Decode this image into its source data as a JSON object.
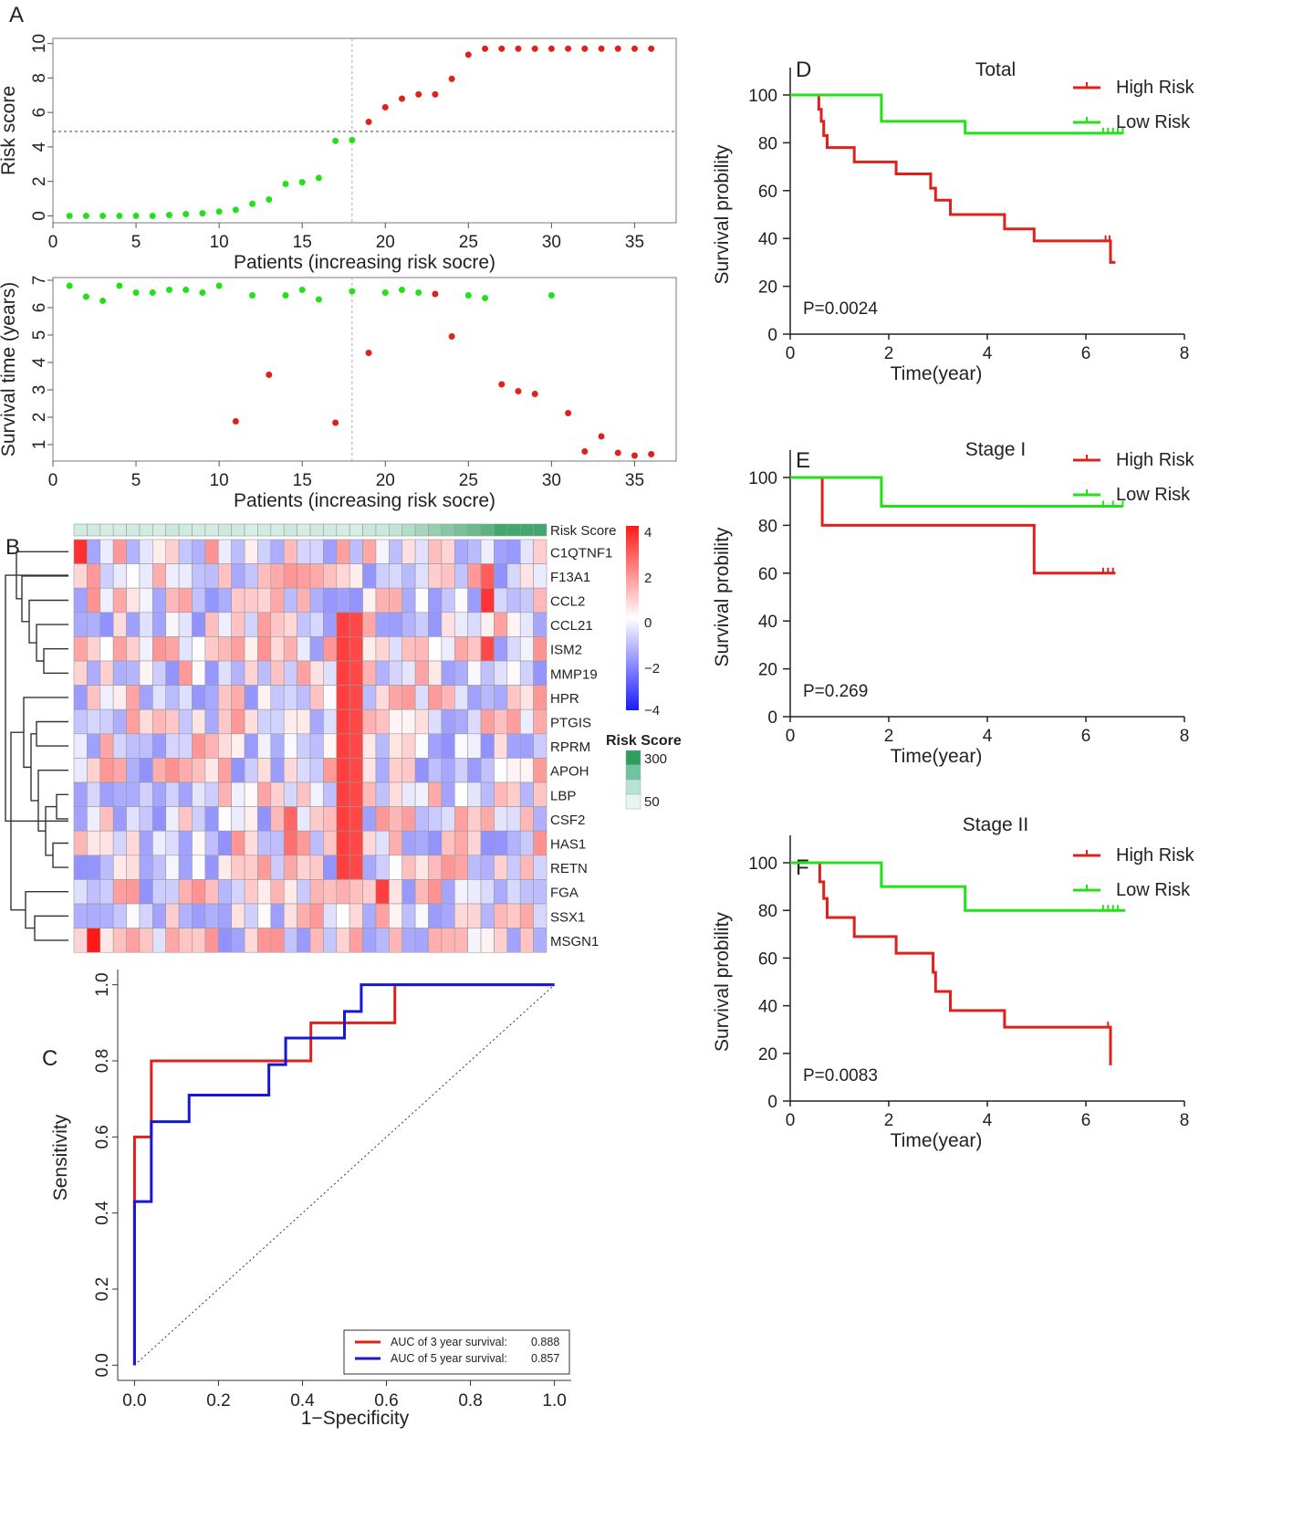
{
  "panel_labels": {
    "A": "A",
    "B": "B",
    "C": "C",
    "D": "D",
    "E": "E",
    "F": "F"
  },
  "colors": {
    "high": "#e0201b",
    "low": "#24e01a",
    "blue": "#1717d6",
    "heat_high": "#ff1a1a",
    "heat_mid": "#ffffff",
    "heat_low": "#1a1aff",
    "risk_dark": "#2e9e5e",
    "risk_light": "#e6f5f1"
  },
  "chart_data": [
    {
      "id": "A1",
      "type": "scatter",
      "ylabel": "Risk score",
      "xlabel": "Patients (increasing risk socre)",
      "xlim": [
        0,
        37.5
      ],
      "ylim": [
        -0.4,
        10.3
      ],
      "xticks": [
        "0",
        "5",
        "10",
        "15",
        "20",
        "25",
        "30",
        "35"
      ],
      "yticks": [
        "0",
        "2",
        "4",
        "6",
        "8",
        "10"
      ],
      "cutoff_x": 18,
      "cutoff_y": 4.9,
      "x": [
        1,
        2,
        3,
        4,
        5,
        6,
        7,
        8,
        9,
        10,
        11,
        12,
        13,
        14,
        15,
        16,
        17,
        18,
        19,
        20,
        21,
        22,
        23,
        24,
        25,
        26,
        27,
        28,
        29,
        30,
        31,
        32,
        33,
        34,
        35,
        36
      ],
      "y": [
        0,
        0,
        0,
        0,
        0,
        0,
        0.05,
        0.1,
        0.15,
        0.25,
        0.35,
        0.7,
        0.95,
        1.85,
        1.95,
        2.2,
        4.35,
        4.4,
        5.45,
        6.3,
        6.8,
        7.05,
        7.05,
        7.95,
        9.35,
        9.7,
        9.7,
        9.7,
        9.7,
        9.7,
        9.7,
        9.7,
        9.7,
        9.7,
        9.7,
        9.7
      ],
      "group": [
        "low",
        "low",
        "low",
        "low",
        "low",
        "low",
        "low",
        "low",
        "low",
        "low",
        "low",
        "low",
        "low",
        "low",
        "low",
        "low",
        "low",
        "low",
        "high",
        "high",
        "high",
        "high",
        "high",
        "high",
        "high",
        "high",
        "high",
        "high",
        "high",
        "high",
        "high",
        "high",
        "high",
        "high",
        "high",
        "high"
      ]
    },
    {
      "id": "A2",
      "type": "scatter",
      "ylabel": "Survival time (years)",
      "xlabel": "Patients (increasing risk socre)",
      "xlim": [
        0,
        37.5
      ],
      "ylim": [
        0.4,
        7.1
      ],
      "xticks": [
        "0",
        "5",
        "10",
        "15",
        "20",
        "25",
        "30",
        "35"
      ],
      "yticks": [
        "1",
        "2",
        "3",
        "4",
        "5",
        "6",
        "7"
      ],
      "cutoff_x": 18,
      "x": [
        1,
        2,
        3,
        4,
        5,
        6,
        7,
        8,
        9,
        10,
        11,
        12,
        13,
        14,
        15,
        16,
        17,
        18,
        19,
        20,
        21,
        22,
        23,
        24,
        25,
        26,
        27,
        28,
        29,
        30,
        31,
        32,
        33,
        34,
        35,
        36
      ],
      "y": [
        6.8,
        6.4,
        6.25,
        6.8,
        6.55,
        6.55,
        6.65,
        6.65,
        6.55,
        6.8,
        1.85,
        6.45,
        3.55,
        6.45,
        6.65,
        6.3,
        1.8,
        6.6,
        4.35,
        6.55,
        6.65,
        6.55,
        6.5,
        4.95,
        6.45,
        6.35,
        3.2,
        2.95,
        2.85,
        6.45,
        2.15,
        0.75,
        1.3,
        0.7,
        0.6,
        0.65
      ],
      "status": [
        "alive",
        "alive",
        "alive",
        "alive",
        "alive",
        "alive",
        "alive",
        "alive",
        "alive",
        "alive",
        "dead",
        "alive",
        "dead",
        "alive",
        "alive",
        "alive",
        "dead",
        "alive",
        "dead",
        "alive",
        "alive",
        "alive",
        "dead",
        "dead",
        "alive",
        "alive",
        "dead",
        "dead",
        "dead",
        "alive",
        "dead",
        "dead",
        "dead",
        "dead",
        "dead",
        "dead"
      ]
    },
    {
      "id": "B",
      "type": "heatmap",
      "top_annotation_label": "Risk Score",
      "genes": [
        "C1QTNF1",
        "F13A1",
        "CCL2",
        "CCL21",
        "ISM2",
        "MMP19",
        "HPR",
        "PTGIS",
        "RPRM",
        "APOH",
        "LBP",
        "CSF2",
        "HAS1",
        "RETN",
        "FGA",
        "SSX1",
        "MSGN1"
      ],
      "n_columns": 36,
      "color_scale": {
        "ticks": [
          "4",
          "2",
          "0",
          "−2",
          "−4"
        ],
        "range": [
          -4,
          4
        ]
      },
      "risk_legend": {
        "title": "Risk Score",
        "ticks": [
          "300",
          "50"
        ]
      }
    },
    {
      "id": "C",
      "type": "line",
      "xlabel": "1−Specificity",
      "ylabel": "Sensitivity",
      "xlim": [
        -0.04,
        1.04
      ],
      "ylim": [
        -0.04,
        1.04
      ],
      "xticks": [
        "0.0",
        "0.2",
        "0.4",
        "0.6",
        "0.8",
        "1.0"
      ],
      "yticks": [
        "0.0",
        "0.2",
        "0.4",
        "0.6",
        "0.8",
        "1.0"
      ],
      "series": [
        {
          "name": "AUC of 3 year survival:",
          "auc": "0.888",
          "color": "red",
          "x": [
            0,
            0,
            0.04,
            0.04,
            0.42,
            0.42,
            0.62,
            0.62,
            1.0
          ],
          "y": [
            0,
            0.6,
            0.6,
            0.8,
            0.8,
            0.9,
            0.9,
            1.0,
            1.0
          ]
        },
        {
          "name": "AUC of 5 year survival:",
          "auc": "0.857",
          "color": "blue",
          "x": [
            0,
            0,
            0.04,
            0.04,
            0.13,
            0.13,
            0.32,
            0.32,
            0.36,
            0.36,
            0.5,
            0.5,
            0.54,
            0.54,
            1.0
          ],
          "y": [
            0,
            0.43,
            0.43,
            0.64,
            0.64,
            0.71,
            0.71,
            0.79,
            0.79,
            0.86,
            0.86,
            0.93,
            0.93,
            1.0,
            1.0
          ]
        }
      ]
    },
    {
      "id": "D",
      "type": "line",
      "title": "Total",
      "xlabel": "Time(year)",
      "ylabel": "Survival probility",
      "xlim": [
        0,
        8
      ],
      "ylim": [
        0,
        100
      ],
      "xticks": [
        "0",
        "2",
        "4",
        "6",
        "8"
      ],
      "yticks": [
        "0",
        "20",
        "40",
        "60",
        "80",
        "100"
      ],
      "pvalue": "P=0.0024",
      "series": [
        {
          "name": "High Risk",
          "color": "red",
          "x": [
            0,
            0.58,
            0.58,
            0.63,
            0.63,
            0.68,
            0.68,
            0.75,
            0.75,
            1.3,
            1.3,
            2.15,
            2.15,
            2.85,
            2.85,
            2.95,
            2.95,
            3.25,
            3.25,
            4.35,
            4.35,
            4.95,
            4.95,
            6.5,
            6.5,
            6.6
          ],
          "y": [
            100,
            100,
            94,
            94,
            89,
            89,
            83,
            83,
            78,
            78,
            72,
            72,
            67,
            67,
            61,
            61,
            56,
            56,
            50,
            50,
            44,
            44,
            39,
            39,
            30,
            30
          ],
          "censor_x": [
            6.4,
            6.48
          ]
        },
        {
          "name": "Low Risk",
          "color": "green",
          "x": [
            0,
            1.85,
            1.85,
            3.55,
            3.55,
            6.75
          ],
          "y": [
            100,
            100,
            89,
            89,
            84,
            84
          ],
          "censor_x": [
            6.35,
            6.45,
            6.55,
            6.65,
            6.75
          ]
        }
      ]
    },
    {
      "id": "E",
      "type": "line",
      "title": "Stage I",
      "xlabel": "Time(year)",
      "ylabel": "Survival probility",
      "xlim": [
        0,
        8
      ],
      "ylim": [
        0,
        100
      ],
      "xticks": [
        "0",
        "2",
        "4",
        "6",
        "8"
      ],
      "yticks": [
        "0",
        "20",
        "40",
        "60",
        "80",
        "100"
      ],
      "pvalue": "P=0.269",
      "series": [
        {
          "name": "High Risk",
          "color": "red",
          "x": [
            0,
            0.65,
            0.65,
            4.95,
            4.95,
            6.6
          ],
          "y": [
            100,
            100,
            80,
            80,
            60,
            60
          ],
          "censor_x": [
            6.35,
            6.45,
            6.55
          ]
        },
        {
          "name": "Low Risk",
          "color": "green",
          "x": [
            0,
            1.85,
            1.85,
            6.75
          ],
          "y": [
            100,
            100,
            88,
            88
          ],
          "censor_x": [
            6.35,
            6.55,
            6.75
          ]
        }
      ]
    },
    {
      "id": "F",
      "type": "line",
      "title": "Stage II",
      "xlabel": "Time(year)",
      "ylabel": "Survival probility",
      "xlim": [
        0,
        8
      ],
      "ylim": [
        0,
        100
      ],
      "xticks": [
        "0",
        "2",
        "4",
        "6",
        "8"
      ],
      "yticks": [
        "0",
        "20",
        "40",
        "60",
        "80",
        "100"
      ],
      "pvalue": "P=0.0083",
      "series": [
        {
          "name": "High Risk",
          "color": "red",
          "x": [
            0,
            0.6,
            0.6,
            0.68,
            0.68,
            0.75,
            0.75,
            1.3,
            1.3,
            2.15,
            2.15,
            2.9,
            2.9,
            2.95,
            2.95,
            3.25,
            3.25,
            4.35,
            4.35,
            6.5,
            6.5
          ],
          "y": [
            100,
            100,
            92,
            92,
            85,
            85,
            77,
            77,
            69,
            69,
            62,
            62,
            54,
            54,
            46,
            46,
            38,
            38,
            31,
            31,
            15
          ],
          "censor_x": [
            6.45
          ]
        },
        {
          "name": "Low Risk",
          "color": "green",
          "x": [
            0,
            1.85,
            1.85,
            3.55,
            3.55,
            6.8
          ],
          "y": [
            100,
            100,
            90,
            90,
            80,
            80
          ],
          "censor_x": [
            6.35,
            6.45,
            6.55,
            6.65
          ]
        }
      ]
    }
  ]
}
